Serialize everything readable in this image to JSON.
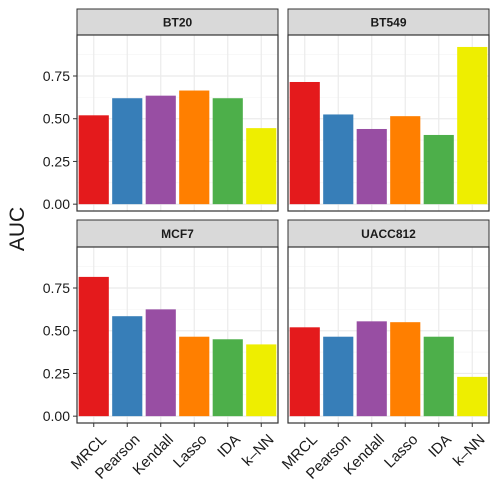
{
  "chart_data": {
    "type": "bar",
    "ylabel": "AUC",
    "xlabel": "",
    "title": "",
    "categories": [
      "MRCL",
      "Pearson",
      "Kendall",
      "Lasso",
      "IDA",
      "k–NN"
    ],
    "colors": [
      "#e41a1c",
      "#377eb8",
      "#984ea3",
      "#ff7f00",
      "#4daf4a",
      "#eeee00"
    ],
    "ylim": [
      -0.04,
      0.99
    ],
    "yticks": [
      0.0,
      0.25,
      0.5,
      0.75
    ],
    "ytick_labels": [
      "0.00",
      "0.25",
      "0.50",
      "0.75"
    ],
    "legend": "none",
    "grid": true,
    "facets": [
      {
        "name": "BT20",
        "values": [
          0.52,
          0.62,
          0.635,
          0.665,
          0.62,
          0.445
        ]
      },
      {
        "name": "BT549",
        "values": [
          0.715,
          0.525,
          0.44,
          0.515,
          0.405,
          0.92
        ]
      },
      {
        "name": "MCF7",
        "values": [
          0.815,
          0.585,
          0.625,
          0.465,
          0.45,
          0.42
        ]
      },
      {
        "name": "UACC812",
        "values": [
          0.52,
          0.465,
          0.555,
          0.55,
          0.465,
          0.23
        ]
      }
    ]
  }
}
